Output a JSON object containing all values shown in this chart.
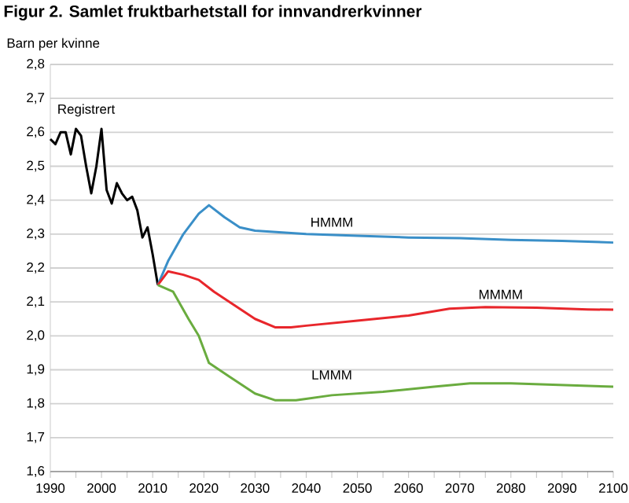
{
  "chart_data": {
    "type": "line",
    "title": "Figur 2. Samlet fruktbarhetstall for innvandrerkvinner",
    "ylabel": "Barn per kvinne",
    "xlim": [
      1990,
      2100
    ],
    "xticks": [
      1990,
      2000,
      2010,
      2020,
      2030,
      2040,
      2050,
      2060,
      2070,
      2080,
      2090,
      2100
    ],
    "ylim": [
      1.6,
      2.8
    ],
    "yticks": [
      {
        "value": 1.6,
        "label": "1,6"
      },
      {
        "value": 1.7,
        "label": "1,7"
      },
      {
        "value": 1.8,
        "label": "1,8"
      },
      {
        "value": 1.9,
        "label": "1,9"
      },
      {
        "value": 2.0,
        "label": "2,0"
      },
      {
        "value": 2.1,
        "label": "2,1"
      },
      {
        "value": 2.2,
        "label": "2,2"
      },
      {
        "value": 2.3,
        "label": "2,3"
      },
      {
        "value": 2.4,
        "label": "2,4"
      },
      {
        "value": 2.5,
        "label": "2,5"
      },
      {
        "value": 2.6,
        "label": "2,6"
      },
      {
        "value": 2.7,
        "label": "2,7"
      },
      {
        "value": 2.8,
        "label": "2,8"
      }
    ],
    "grid": "y",
    "legend": false,
    "marker": "none",
    "line_style": "solid",
    "series": [
      {
        "name": "Registrert",
        "color": "#000000",
        "x": [
          1990,
          1991,
          1992,
          1993,
          1994,
          1995,
          1996,
          1997,
          1998,
          1999,
          2000,
          2001,
          2002,
          2003,
          2004,
          2005,
          2006,
          2007,
          2008,
          2009,
          2010,
          2011
        ],
        "values": [
          2.58,
          2.565,
          2.6,
          2.6,
          2.535,
          2.61,
          2.59,
          2.5,
          2.42,
          2.5,
          2.61,
          2.43,
          2.39,
          2.45,
          2.42,
          2.4,
          2.41,
          2.37,
          2.29,
          2.32,
          2.24,
          2.15
        ]
      },
      {
        "name": "HMMM",
        "color": "#3a8fc8",
        "x": [
          2011,
          2013,
          2016,
          2019,
          2021,
          2024,
          2027,
          2030,
          2035,
          2040,
          2050,
          2060,
          2070,
          2080,
          2090,
          2100
        ],
        "values": [
          2.15,
          2.22,
          2.3,
          2.36,
          2.385,
          2.35,
          2.32,
          2.31,
          2.305,
          2.3,
          2.295,
          2.29,
          2.288,
          2.283,
          2.28,
          2.275
        ]
      },
      {
        "name": "MMMM",
        "color": "#e8262b",
        "x": [
          2011,
          2013,
          2016,
          2019,
          2022,
          2026,
          2030,
          2034,
          2037,
          2040,
          2050,
          2060,
          2068,
          2075,
          2085,
          2095,
          2100
        ],
        "values": [
          2.15,
          2.19,
          2.18,
          2.165,
          2.13,
          2.09,
          2.05,
          2.025,
          2.025,
          2.03,
          2.045,
          2.06,
          2.08,
          2.085,
          2.083,
          2.078,
          2.077
        ]
      },
      {
        "name": "LMMM",
        "color": "#6aac3f",
        "x": [
          2011,
          2014,
          2017,
          2019,
          2021,
          2025,
          2030,
          2034,
          2038,
          2045,
          2055,
          2065,
          2072,
          2080,
          2090,
          2100
        ],
        "values": [
          2.15,
          2.13,
          2.05,
          2.0,
          1.92,
          1.88,
          1.83,
          1.81,
          1.81,
          1.825,
          1.835,
          1.85,
          1.86,
          1.86,
          1.855,
          1.85
        ]
      }
    ]
  }
}
